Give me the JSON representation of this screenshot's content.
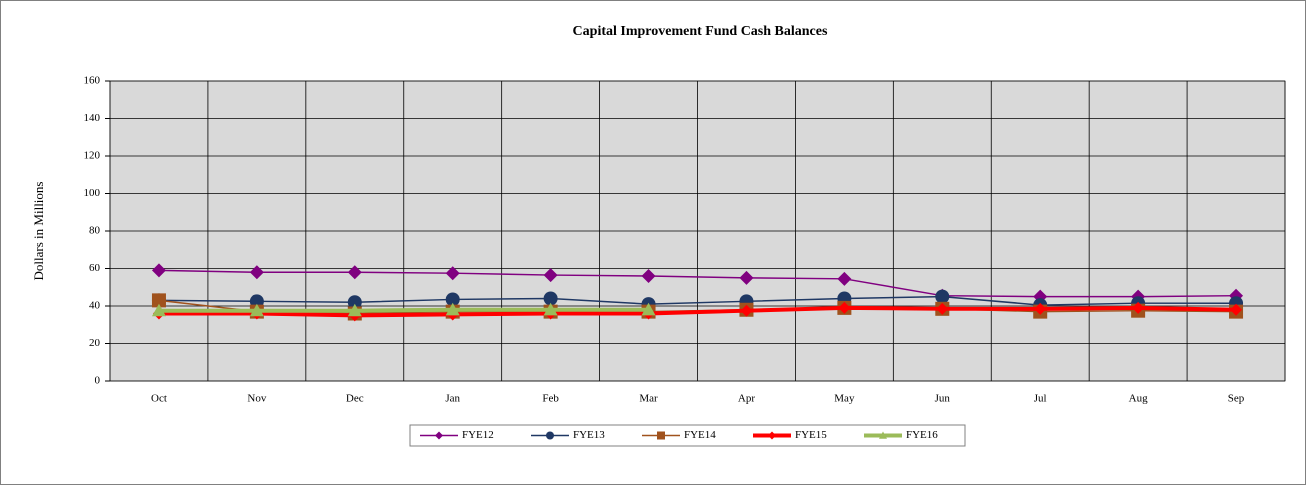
{
  "chart_data": {
    "type": "line",
    "title": "Capital Improvement Fund Cash Balances",
    "y_label": "Dollars in Millions",
    "categories": [
      "Oct",
      "Nov",
      "Dec",
      "Jan",
      "Feb",
      "Mar",
      "Apr",
      "May",
      "Jun",
      "Jul",
      "Aug",
      "Sep"
    ],
    "series": [
      {
        "name": "FYE12",
        "color": "#800080",
        "marker": "diamond",
        "width": 1.5,
        "values": [
          59,
          58,
          58,
          57.5,
          56.5,
          56,
          55,
          54.5,
          45.5,
          45,
          45,
          45.5
        ]
      },
      {
        "name": "FYE13",
        "color": "#1f3864",
        "marker": "circle",
        "width": 1.5,
        "values": [
          43,
          42.5,
          42,
          43.5,
          44,
          41,
          42.5,
          44,
          45,
          40.5,
          41.5,
          41.5
        ]
      },
      {
        "name": "FYE14",
        "color": "#a0521d",
        "marker": "square",
        "width": 1.5,
        "values": [
          43,
          37,
          36,
          37,
          37,
          37,
          38,
          39,
          38.5,
          37,
          37.5,
          37
        ]
      },
      {
        "name": "FYE15",
        "color": "#ff0000",
        "marker": "diamond",
        "width": 4,
        "values": [
          36,
          36,
          35,
          35.5,
          36,
          36,
          37.5,
          39,
          38.5,
          38.5,
          39,
          38
        ]
      },
      {
        "name": "FYE16",
        "color": "#9bbb59",
        "marker": "triangle",
        "width": 4,
        "values": [
          37.5,
          37.5,
          37.5,
          38,
          38,
          38,
          null,
          null,
          null,
          null,
          null,
          null
        ]
      }
    ],
    "ylim": [
      0,
      160
    ],
    "yticks": [
      0,
      20,
      40,
      60,
      80,
      100,
      120,
      140,
      160
    ],
    "grid": true,
    "legend": "bottom"
  }
}
